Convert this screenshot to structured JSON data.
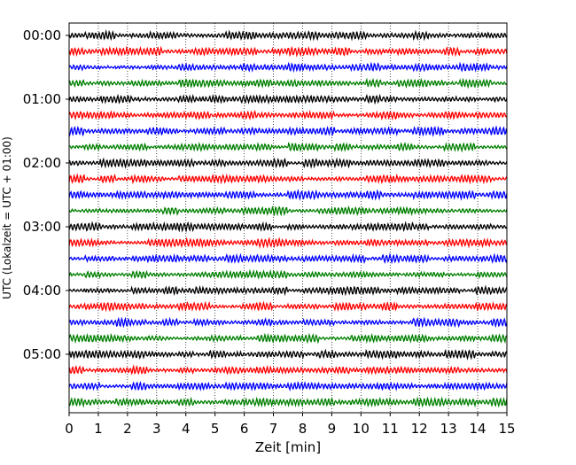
{
  "chart_data": {
    "type": "line",
    "title": "",
    "xlabel": "Zeit  [min]",
    "ylabel": "UTC (Lokalzeit = UTC + 01:00)",
    "xlim": [
      0,
      15
    ],
    "x_ticks": [
      "0",
      "1",
      "2",
      "3",
      "4",
      "5",
      "6",
      "7",
      "8",
      "9",
      "10",
      "11",
      "12",
      "13",
      "14",
      "15"
    ],
    "y_tick_labels": [
      "00:00",
      "01:00",
      "02:00",
      "03:00",
      "04:00",
      "05:00"
    ],
    "grid": "dotted vertical lines at each minute",
    "trace_colors": [
      "#000000",
      "#ff0000",
      "#0000ff",
      "#008000"
    ],
    "trace_start_times": [
      "00:00",
      "00:15",
      "00:30",
      "00:45",
      "01:00",
      "01:15",
      "01:30",
      "01:45",
      "02:00",
      "02:15",
      "02:30",
      "02:45",
      "03:00",
      "03:15",
      "03:30",
      "03:45",
      "04:00",
      "04:15",
      "04:30",
      "04:45",
      "05:00",
      "05:15",
      "05:30",
      "05:45"
    ],
    "trace_minutes_per_line": 15
  }
}
